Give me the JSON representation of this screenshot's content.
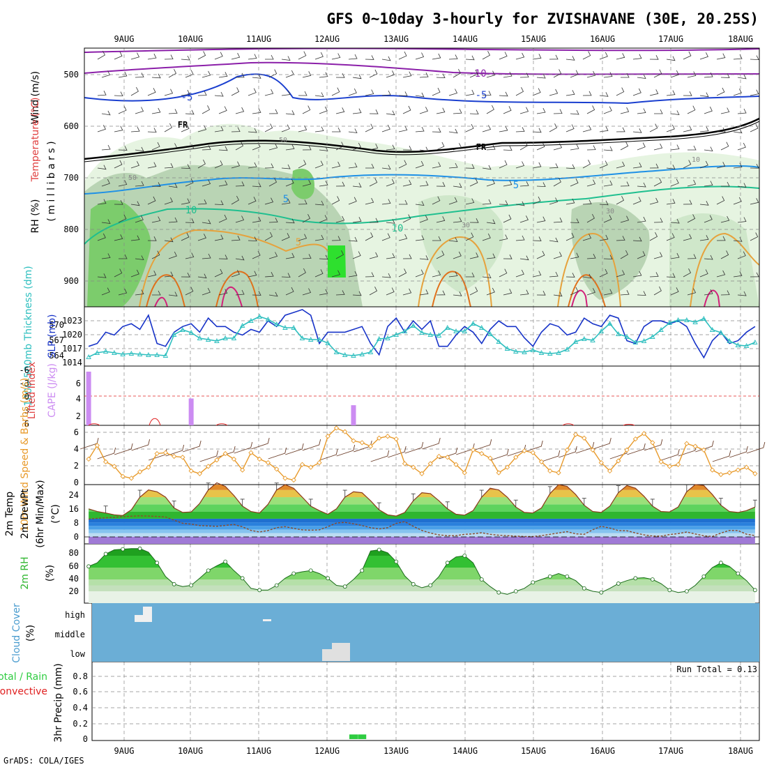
{
  "chart_data": {
    "type": "meteogram",
    "title": "GFS 0~10day 3-hourly for ZVISHAVANE (30E, 20.25S)",
    "credit": "GrADS: COLA/IGES",
    "dates": [
      "9AUG",
      "10AUG",
      "11AUG",
      "12AUG",
      "13AUG",
      "14AUG",
      "15AUG",
      "16AUG",
      "17AUG",
      "18AUG"
    ],
    "panels": [
      {
        "id": "upper_air",
        "type": "contour",
        "ylabels": [
          "Wind (m/s)",
          "Temperature (°C)",
          "RH (%)"
        ],
        "ylabel_extra": "( m i l l i b a r s )",
        "yticks": [
          "500",
          "600",
          "700",
          "800",
          "900"
        ],
        "contour_labels": [
          "-10",
          "-5",
          "FR",
          "5",
          "10",
          "5",
          "-5",
          "FR",
          "5",
          "10",
          "30",
          "30",
          "50",
          "50",
          "10"
        ],
        "temperature_levels": [
          -10,
          -5,
          0,
          5,
          10,
          15,
          20,
          25
        ],
        "rh_levels": [
          10,
          30,
          50,
          70,
          90
        ]
      },
      {
        "id": "thickness_slp",
        "type": "line",
        "ylabel_left": "1000-500mb Thickness (dm)",
        "ylabel_right": "SLP (mb)",
        "yticks_left": [
          "570",
          "567",
          "564"
        ],
        "yticks_right": [
          "1023",
          "1020",
          "1017",
          "1014"
        ],
        "series": [
          {
            "name": "SLP (mb)",
            "color": "#1733c8",
            "values": [
              1017.5,
              1018,
              1020,
              1019.5,
              1021,
              1021.5,
              1020.5,
              1023,
              1018,
              1017.5,
              1020,
              1021,
              1021.5,
              1020,
              1022.5,
              1021,
              1021,
              1020,
              1019.5,
              1020.5,
              1020,
              1022,
              1021,
              1023,
              1023.5,
              1024,
              1023,
              1018,
              1020,
              1020,
              1020,
              1020.5,
              1021,
              1018,
              1016,
              1021,
              1022.5,
              1020,
              1022,
              1020.5,
              1022,
              1017.5,
              1017.5,
              1019.5,
              1021,
              1020,
              1018,
              1020.5,
              1022,
              1021,
              1021,
              1019,
              1017.5,
              1020,
              1021.5,
              1021,
              1019.5,
              1020,
              1022.5,
              1021.5,
              1021,
              1023,
              1022.5,
              1018.5,
              1018,
              1021,
              1022,
              1022,
              1021.5,
              1022,
              1021,
              1018,
              1015.5,
              1018.5,
              1020,
              1018,
              1018.5,
              1020,
              1021
            ],
            "ylim": [
              1014,
              1024.5
            ]
          },
          {
            "name": "1000-500mb Thickness (dm)",
            "color": "#2ebfbf",
            "values": [
              564.3,
              564.9,
              565.1,
              564.9,
              564.7,
              564.8,
              564.7,
              564.6,
              564.6,
              564.5,
              567.5,
              568.2,
              567.8,
              567,
              566.8,
              566.6,
              567,
              567,
              568.8,
              569.5,
              570.1,
              569.7,
              569,
              568.5,
              568.5,
              567,
              566.8,
              566.8,
              566.3,
              565,
              564.6,
              564.5,
              564.7,
              565,
              566.9,
              567,
              567.5,
              568,
              568.8,
              567.8,
              567.5,
              567.4,
              568.5,
              568,
              568,
              569.1,
              568.5,
              567.6,
              566.5,
              565.5,
              565.1,
              565,
              565.3,
              564.9,
              564.8,
              564.9,
              565.4,
              566.5,
              566.9,
              566.7,
              568,
              569.1,
              567.6,
              567.2,
              566.4,
              566.6,
              567.2,
              568.2,
              569.2,
              569.6,
              569.6,
              569.3,
              569.8,
              568.2,
              567.8,
              566.6,
              566,
              565.9,
              566.4
            ],
            "ylim": [
              563,
              571.5
            ]
          }
        ]
      },
      {
        "id": "cape_li",
        "type": "bar",
        "ylabel_left": "Lifted Index",
        "ylabel_right": "CAPE (J/kg)",
        "yticks_left": [
          "-6",
          "-3",
          "0",
          "3",
          "6"
        ],
        "yticks_right": [
          "6",
          "4",
          "2"
        ],
        "series": [
          {
            "name": "CAPE (J/kg)",
            "color": "#cc8cf2",
            "values": [
              8,
              0,
              0,
              0,
              0,
              0,
              0,
              0,
              0,
              0,
              0,
              0,
              4,
              0,
              0,
              0,
              0,
              0,
              0,
              0,
              0,
              0,
              0,
              0,
              0,
              0,
              0,
              0,
              0,
              0,
              0,
              3,
              0,
              0,
              0,
              0,
              0,
              0,
              0,
              0,
              0,
              0,
              0,
              0,
              0,
              0,
              0,
              0,
              0,
              0,
              0,
              0,
              0,
              0,
              0,
              0,
              0,
              0,
              0,
              0,
              0,
              0,
              0,
              0,
              0,
              0,
              0,
              0,
              0,
              0,
              0,
              0,
              0,
              0,
              0,
              0,
              0,
              0,
              0
            ],
            "ylim": [
              0,
              8
            ]
          },
          {
            "name": "Lifted Index",
            "color": "#e02020",
            "dashed_zero_line": true,
            "ylim": [
              -9,
              6
            ]
          }
        ]
      },
      {
        "id": "wind10m",
        "type": "line",
        "ylabel": "10m Wind Speed & Barbs (m/s)",
        "yticks": [
          "6",
          "4",
          "2",
          "0"
        ],
        "series": [
          {
            "name": "10m Wind Speed",
            "color": "#e89a2a",
            "values": [
              2.8,
              4.3,
              2.5,
              2,
              0.9,
              0.7,
              1.4,
              1.9,
              3.4,
              3.5,
              3.1,
              3,
              1.5,
              1.2,
              2,
              2.7,
              3.4,
              2.8,
              1.6,
              3.5,
              2.8,
              2.4,
              1.7,
              0.7,
              0.5,
              2.2,
              1.9,
              2.4,
              5.3,
              6.2,
              5.8,
              4.8,
              4.6,
              4.2,
              5.1,
              5.3,
              5,
              2.3,
              1.9,
              1.2,
              2.3,
              3.1,
              3,
              2.2,
              1.3,
              3.8,
              3.4,
              2.9,
              1.3,
              1.9,
              3,
              3.7,
              3.5,
              2.5,
              1.5,
              1.3,
              3.8,
              5.5,
              5.1,
              3.8,
              2.4,
              1.5,
              2.6,
              3.8,
              5,
              5.6,
              4.6,
              2.5,
              2,
              2.2,
              4.5,
              4.2,
              3.8,
              1.6,
              1.1,
              1.3,
              1.6,
              1.9,
              1.2
            ],
            "ylim": [
              0,
              6.5
            ]
          }
        ]
      },
      {
        "id": "temp2m",
        "type": "area",
        "ylabels": [
          "2m Temp",
          "2m DewPt",
          "(6hr Min/Max)"
        ],
        "unit": "(°C)",
        "yticks": [
          "24",
          "16",
          "8",
          "0"
        ],
        "series": [
          {
            "name": "2m Temp (°C)",
            "color": "#8b3a1a",
            "values": [
              15.5,
              14,
              13.2,
              12.2,
              11.8,
              15,
              22,
              26,
              25,
              22,
              16,
              13.5,
              13.8,
              18.5,
              26,
              30,
              28,
              23,
              17,
              14,
              13.2,
              18,
              26,
              29,
              27,
              22,
              17,
              14.5,
              12.5,
              15.5,
              22,
              25,
              24.5,
              20,
              15,
              12.2,
              11.5,
              13.5,
              20,
              24.5,
              24,
              20,
              15.5,
              12.5,
              12,
              14.5,
              22,
              27,
              26,
              22,
              16.5,
              13.5,
              13.2,
              16,
              24,
              29,
              28,
              23.5,
              17.5,
              14,
              13.5,
              17,
              24.5,
              28.5,
              27,
              22.5,
              17,
              14,
              13.8,
              16.5,
              25,
              29,
              28.5,
              23.5,
              17.5,
              14,
              13.5,
              14.5,
              16.5
            ],
            "ylim": [
              -4,
              29
            ]
          },
          {
            "name": "2m DewPt (°C)",
            "color": "#8b4a2a",
            "dashed": true,
            "values": [
              9.8,
              10.2,
              10.5,
              10.8,
              11.2,
              11.4,
              11.6,
              11.5,
              11.3,
              11,
              9.2,
              7.5,
              7,
              6.2,
              6,
              5.8,
              6.3,
              6.8,
              5.5,
              3.5,
              2.6,
              3.4,
              5,
              5.6,
              4.6,
              3.8,
              3.6,
              3.8,
              5.6,
              7.6,
              8,
              7.2,
              6.2,
              5,
              4.3,
              5,
              7.4,
              8.4,
              5.8,
              3.5,
              2,
              1,
              0.6,
              0.6,
              1.3,
              1.6,
              2.2,
              1.3,
              0.8,
              0.6,
              0.3,
              0.1,
              0.1,
              0.6,
              1.3,
              2.1,
              2.8,
              1.6,
              1.3,
              3.9,
              5.8,
              4.8,
              3.4,
              3.3,
              2.1,
              1,
              0.4,
              0.3,
              1.2,
              1.7,
              2.6,
              1.5,
              0.5,
              0.1,
              2,
              3.5,
              3.4,
              1.4,
              0.6
            ],
            "ylim": [
              -4,
              29
            ]
          }
        ]
      },
      {
        "id": "rh2m",
        "type": "area",
        "ylabel": "2m RH",
        "unit": "(%)",
        "yticks": [
          "80",
          "60",
          "40",
          "20"
        ],
        "series": [
          {
            "name": "2m RH (%)",
            "color": "#2fb62f",
            "values": [
              62,
              68,
              83,
              90,
              91,
              92,
              92,
              86,
              68,
              45,
              32,
              28,
              30,
              42,
              55,
              63,
              70,
              55,
              42,
              25,
              22,
              22,
              30,
              42,
              50,
              53,
              55,
              50,
              42,
              30,
              28,
              40,
              55,
              88,
              90,
              85,
              70,
              46,
              32,
              26,
              30,
              45,
              68,
              78,
              80,
              68,
              40,
              28,
              18,
              15,
              20,
              25,
              35,
              40,
              45,
              50,
              45,
              38,
              25,
              20,
              18,
              25,
              33,
              38,
              42,
              43,
              40,
              33,
              22,
              18,
              20,
              30,
              45,
              60,
              68,
              62,
              50,
              38,
              22
            ],
            "ylim": [
              0,
              100
            ]
          }
        ]
      },
      {
        "id": "cloud",
        "type": "heatmap",
        "ylabel": "Cloud Cover",
        "unit": "(%)",
        "yticks": [
          "high",
          "middle",
          "low"
        ],
        "background_color": "#6baed6"
      },
      {
        "id": "precip",
        "type": "bar",
        "ylabels": [
          "Total / Rain",
          "Convective",
          "3hr Precip (mm)"
        ],
        "yticks": [
          "0.8",
          "0.6",
          "0.4",
          "0.2",
          "0"
        ],
        "annotation": "Run Total = 0.13",
        "series": [
          {
            "name": "Total",
            "color": "#2ecc40",
            "values": [
              0,
              0,
              0,
              0,
              0,
              0,
              0,
              0,
              0,
              0,
              0,
              0,
              0,
              0,
              0,
              0,
              0,
              0,
              0,
              0,
              0,
              0,
              0,
              0,
              0,
              0,
              0,
              0,
              0,
              0,
              0,
              0.06,
              0.06,
              0,
              0,
              0,
              0,
              0,
              0,
              0,
              0,
              0,
              0,
              0,
              0,
              0,
              0,
              0,
              0,
              0,
              0,
              0,
              0,
              0,
              0,
              0,
              0,
              0,
              0,
              0,
              0,
              0,
              0,
              0,
              0,
              0,
              0,
              0,
              0,
              0,
              0,
              0,
              0,
              0,
              0,
              0,
              0,
              0,
              0
            ],
            "ylim": [
              0,
              1
            ]
          },
          {
            "name": "Convective",
            "color": "#e02020"
          }
        ]
      }
    ]
  }
}
